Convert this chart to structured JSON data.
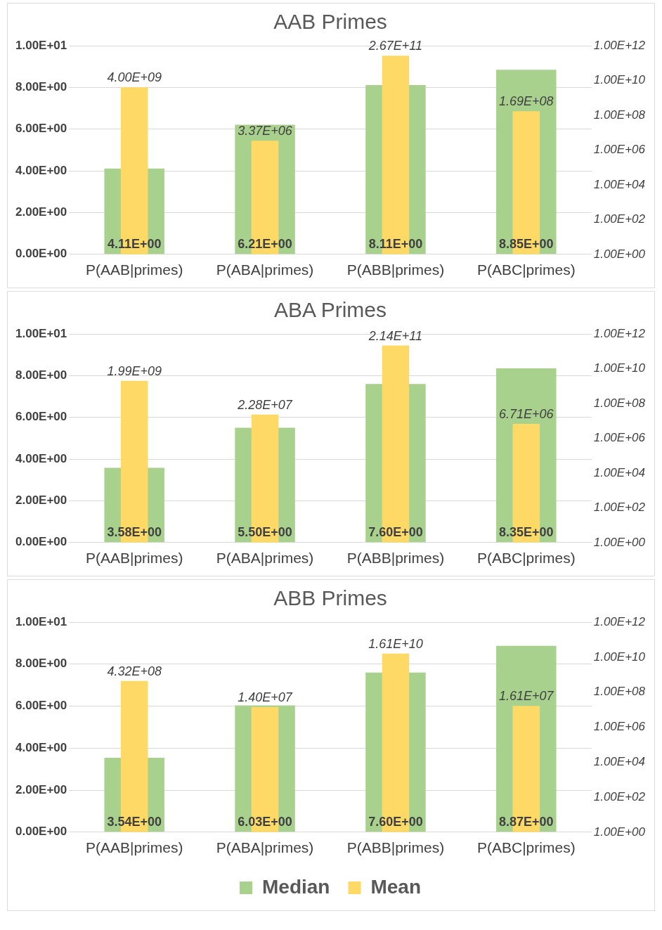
{
  "chart_data": [
    {
      "type": "bar",
      "title": "AAB Primes",
      "categories": [
        "P(AAB|primes)",
        "P(ABA|primes)",
        "P(ABB|primes)",
        "P(ABC|primes)"
      ],
      "series": [
        {
          "color": "#a9d18e",
          "values": [
            4.11,
            6.21,
            8.11,
            8.85
          ],
          "value_labels": [
            "4.11E+00",
            "6.21E+00",
            "8.11E+00",
            "8.85E+00"
          ]
        },
        {
          "color": "#ffd966",
          "axis": "y2",
          "values": [
            4000000000.0,
            3370000.0,
            267000000000.0,
            169000000.0
          ],
          "value_labels": [
            "4.00E+09",
            "3.37E+06",
            "2.67E+11",
            "1.69E+08"
          ]
        }
      ],
      "ylim": [
        0,
        10
      ],
      "yticks": [
        {
          "value": 0,
          "label": "0.00E+00"
        },
        {
          "value": 2,
          "label": "2.00E+00"
        },
        {
          "value": 4,
          "label": "4.00E+00"
        },
        {
          "value": 6,
          "label": "6.00E+00"
        },
        {
          "value": 8,
          "label": "8.00E+00"
        },
        {
          "value": 10,
          "label": "1.00E+01"
        }
      ],
      "y2lim": [
        1,
        1000000000000.0
      ],
      "y2ticks": [
        {
          "value": 1,
          "label": "1.00E+00"
        },
        {
          "value": 100,
          "label": "1.00E+02"
        },
        {
          "value": 10000,
          "label": "1.00E+04"
        },
        {
          "value": 1000000,
          "label": "1.00E+06"
        },
        {
          "value": 100000000,
          "label": "1.00E+08"
        },
        {
          "value": 10000000000,
          "label": "1.00E+10"
        },
        {
          "value": 1000000000000,
          "label": "1.00E+12"
        }
      ],
      "log": "y2",
      "grid": "y"
    },
    {
      "type": "bar",
      "title": "ABA Primes",
      "categories": [
        "P(AAB|primes)",
        "P(ABA|primes)",
        "P(ABB|primes)",
        "P(ABC|primes)"
      ],
      "series": [
        {
          "color": "#a9d18e",
          "values": [
            3.58,
            5.5,
            7.6,
            8.35
          ],
          "value_labels": [
            "3.58E+00",
            "5.50E+00",
            "7.60E+00",
            "8.35E+00"
          ]
        },
        {
          "color": "#ffd966",
          "axis": "y2",
          "values": [
            1990000000.0,
            22800000.0,
            214000000000.0,
            6710000.0
          ],
          "value_labels": [
            "1.99E+09",
            "2.28E+07",
            "2.14E+11",
            "6.71E+06"
          ]
        }
      ],
      "ylim": [
        0,
        10
      ],
      "yticks": [
        {
          "value": 0,
          "label": "0.00E+00"
        },
        {
          "value": 2,
          "label": "2.00E+00"
        },
        {
          "value": 4,
          "label": "4.00E+00"
        },
        {
          "value": 6,
          "label": "6.00E+00"
        },
        {
          "value": 8,
          "label": "8.00E+00"
        },
        {
          "value": 10,
          "label": "1.00E+01"
        }
      ],
      "y2lim": [
        1,
        1000000000000.0
      ],
      "y2ticks": [
        {
          "value": 1,
          "label": "1.00E+00"
        },
        {
          "value": 100,
          "label": "1.00E+02"
        },
        {
          "value": 10000,
          "label": "1.00E+04"
        },
        {
          "value": 1000000,
          "label": "1.00E+06"
        },
        {
          "value": 100000000,
          "label": "1.00E+08"
        },
        {
          "value": 10000000000,
          "label": "1.00E+10"
        },
        {
          "value": 1000000000000,
          "label": "1.00E+12"
        }
      ],
      "log": "y2",
      "grid": "y"
    },
    {
      "type": "bar",
      "title": "ABB Primes",
      "categories": [
        "P(AAB|primes)",
        "P(ABA|primes)",
        "P(ABB|primes)",
        "P(ABC|primes)"
      ],
      "series": [
        {
          "name": "Median",
          "color": "#a9d18e",
          "values": [
            3.54,
            6.03,
            7.6,
            8.87
          ],
          "value_labels": [
            "3.54E+00",
            "6.03E+00",
            "7.60E+00",
            "8.87E+00"
          ]
        },
        {
          "name": "Mean",
          "color": "#ffd966",
          "axis": "y2",
          "values": [
            432000000.0,
            14000000.0,
            16100000000.0,
            16100000.0
          ],
          "value_labels": [
            "4.32E+08",
            "1.40E+07",
            "1.61E+10",
            "1.61E+07"
          ]
        }
      ],
      "ylim": [
        0,
        10
      ],
      "yticks": [
        {
          "value": 0,
          "label": "0.00E+00"
        },
        {
          "value": 2,
          "label": "2.00E+00"
        },
        {
          "value": 4,
          "label": "4.00E+00"
        },
        {
          "value": 6,
          "label": "6.00E+00"
        },
        {
          "value": 8,
          "label": "8.00E+00"
        },
        {
          "value": 10,
          "label": "1.00E+01"
        }
      ],
      "y2lim": [
        1,
        1000000000000.0
      ],
      "y2ticks": [
        {
          "value": 1,
          "label": "1.00E+00"
        },
        {
          "value": 100,
          "label": "1.00E+02"
        },
        {
          "value": 10000,
          "label": "1.00E+04"
        },
        {
          "value": 1000000,
          "label": "1.00E+06"
        },
        {
          "value": 100000000,
          "label": "1.00E+08"
        },
        {
          "value": 10000000000,
          "label": "1.00E+10"
        },
        {
          "value": 1000000000000,
          "label": "1.00E+12"
        }
      ],
      "log": "y2",
      "grid": "y",
      "legend": "bottom"
    }
  ]
}
